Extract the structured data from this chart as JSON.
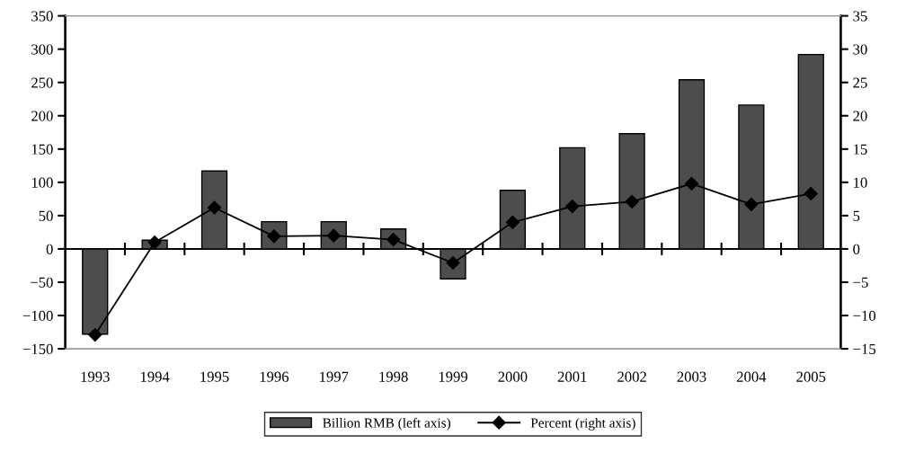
{
  "chart_data": {
    "type": "bar",
    "categories": [
      "1993",
      "1994",
      "1995",
      "1996",
      "1997",
      "1998",
      "1999",
      "2000",
      "2001",
      "2002",
      "2003",
      "2004",
      "2005"
    ],
    "series": [
      {
        "name": "Billion RMB (left axis)",
        "color": "#4d4d4d",
        "values": [
          -128,
          13,
          117,
          41,
          41,
          30,
          -45,
          88,
          152,
          173,
          254,
          216,
          292
        ]
      },
      {
        "name": "Percent (right axis)",
        "type": "line",
        "axis": "y2",
        "color": "#000000",
        "marker": "diamond",
        "values": [
          -12.9,
          1.0,
          6.2,
          1.9,
          2.0,
          1.4,
          -2.1,
          4.0,
          6.4,
          7.1,
          9.8,
          6.7,
          8.3
        ]
      }
    ],
    "ylim": [
      -150,
      350
    ],
    "yticks": [
      -150,
      -100,
      -50,
      0,
      50,
      100,
      150,
      200,
      250,
      300,
      350
    ],
    "y2lim": [
      -15,
      35
    ],
    "y2ticks": [
      -15,
      -10,
      -5,
      0,
      5,
      10,
      15,
      20,
      25,
      30,
      35
    ],
    "legend": "bottom"
  }
}
